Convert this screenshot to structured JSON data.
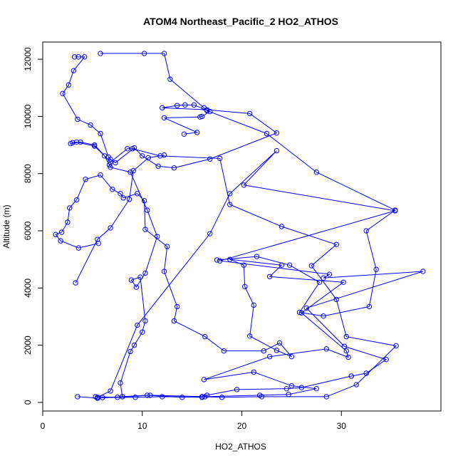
{
  "chart_data": {
    "type": "scatter",
    "title": "ATOM4 Northeast_Pacific_2 HO2_ATHOS",
    "xlabel": "HO2_ATHOS",
    "ylabel": "Altitude (m)",
    "xlim": [
      0,
      40
    ],
    "ylim": [
      -300,
      12600
    ],
    "xticks": [
      0,
      10,
      20,
      30
    ],
    "yticks": [
      0,
      2000,
      4000,
      6000,
      8000,
      10000,
      12000
    ],
    "grid": false,
    "color": "#0000ff",
    "marker": "open-circle",
    "connected": true,
    "series": [
      {
        "values": [
          [
            3.5,
            200
          ],
          [
            5.5,
            150
          ],
          [
            8,
            200
          ],
          [
            10.5,
            250
          ],
          [
            14,
            180
          ],
          [
            16,
            200
          ],
          [
            18,
            180
          ],
          [
            22,
            200
          ],
          [
            28.5,
            200
          ],
          [
            31.5,
            620
          ],
          [
            35.5,
            1980
          ],
          [
            30.5,
            2300
          ],
          [
            29.5,
            3600
          ],
          [
            27,
            4780
          ],
          [
            29.5,
            5520
          ],
          [
            24,
            6150
          ],
          [
            18.8,
            6920
          ],
          [
            17.8,
            8530
          ],
          [
            11.8,
            8620
          ],
          [
            9,
            8870
          ],
          [
            8.5,
            8870
          ],
          [
            6.8,
            8400
          ],
          [
            5.2,
            9000
          ],
          [
            3.8,
            9100
          ],
          [
            2.8,
            9050
          ],
          [
            3,
            9080
          ],
          [
            3.4,
            9100
          ],
          [
            5.2,
            8960
          ],
          [
            6.2,
            8620
          ],
          [
            6.7,
            8300
          ],
          [
            6.8,
            8220
          ],
          [
            8.8,
            8050
          ],
          [
            10.5,
            6720
          ],
          [
            11.5,
            5800
          ],
          [
            10.3,
            4520
          ],
          [
            9.4,
            4030
          ],
          [
            8.9,
            4280
          ],
          [
            9.8,
            4380
          ],
          [
            10.3,
            2850
          ],
          [
            10,
            2460
          ],
          [
            9.2,
            2000
          ],
          [
            8.8,
            1780
          ],
          [
            7.8,
            680
          ],
          [
            8,
            200
          ],
          [
            5.5,
            150
          ]
        ]
      },
      {
        "values": [
          [
            5.3,
            200
          ],
          [
            7.5,
            180
          ],
          [
            10.8,
            250
          ],
          [
            16.3,
            200
          ],
          [
            21.8,
            250
          ],
          [
            24.7,
            280
          ],
          [
            27.5,
            480
          ],
          [
            25,
            580
          ],
          [
            21.2,
            1060
          ],
          [
            16.2,
            800
          ],
          [
            22.8,
            1600
          ],
          [
            28.5,
            1870
          ],
          [
            30.7,
            1580
          ],
          [
            30.5,
            1800
          ],
          [
            26,
            3130
          ],
          [
            30.2,
            4200
          ],
          [
            22.8,
            4400
          ],
          [
            24,
            4800
          ],
          [
            18.8,
            5000
          ],
          [
            20.2,
            4800
          ],
          [
            20.3,
            4050
          ],
          [
            21.2,
            3400
          ],
          [
            20.8,
            2320
          ],
          [
            23.5,
            1820
          ],
          [
            25,
            1600
          ],
          [
            23.8,
            2080
          ],
          [
            22.2,
            1800
          ],
          [
            18.2,
            1800
          ],
          [
            16.3,
            2300
          ],
          [
            13.2,
            2850
          ],
          [
            13.5,
            3350
          ],
          [
            12.2,
            4580
          ],
          [
            12.5,
            5450
          ],
          [
            10.3,
            6050
          ],
          [
            10.2,
            7050
          ],
          [
            9.5,
            7300
          ],
          [
            8.1,
            7150
          ],
          [
            7.8,
            7300
          ],
          [
            7,
            7450
          ],
          [
            5.8,
            7950
          ],
          [
            4.3,
            7800
          ],
          [
            3.4,
            7080
          ],
          [
            2.7,
            6800
          ],
          [
            2.5,
            6300
          ],
          [
            1.9,
            5950
          ],
          [
            1.3,
            5870
          ],
          [
            1.8,
            5650
          ],
          [
            3.6,
            5400
          ],
          [
            5.6,
            5560
          ]
        ]
      },
      {
        "values": [
          [
            6,
            170
          ],
          [
            9.3,
            180
          ],
          [
            12,
            200
          ],
          [
            16,
            180
          ],
          [
            16.5,
            250
          ],
          [
            19.5,
            450
          ],
          [
            24.5,
            480
          ],
          [
            26,
            520
          ],
          [
            31,
            920
          ],
          [
            32.5,
            1020
          ],
          [
            34.5,
            1500
          ],
          [
            30.3,
            1960
          ],
          [
            26.5,
            3300
          ],
          [
            38.2,
            4580
          ],
          [
            28.2,
            4350
          ],
          [
            28.8,
            4480
          ],
          [
            17.8,
            4950
          ],
          [
            35.4,
            6700
          ],
          [
            20.2,
            7600
          ],
          [
            23.5,
            8800
          ],
          [
            18.8,
            7300
          ],
          [
            16.8,
            5900
          ],
          [
            9.5,
            2700
          ],
          [
            6.8,
            400
          ],
          [
            5.5,
            180
          ]
        ]
      },
      {
        "values": [
          [
            3.2,
            12080
          ],
          [
            3.6,
            12080
          ],
          [
            4.2,
            12080
          ],
          [
            3.1,
            11600
          ],
          [
            2.6,
            11100
          ],
          [
            2,
            10800
          ],
          [
            3.5,
            9900
          ],
          [
            4.8,
            9700
          ],
          [
            5.8,
            9400
          ],
          [
            6.6,
            8580
          ],
          [
            6.8,
            8500
          ],
          [
            7.3,
            8380
          ],
          [
            9.2,
            8900
          ],
          [
            10,
            8620
          ],
          [
            11.6,
            8260
          ],
          [
            13.2,
            8200
          ],
          [
            16.8,
            8510
          ],
          [
            23.5,
            9420
          ],
          [
            20.8,
            10100
          ],
          [
            16.5,
            10230
          ],
          [
            12,
            10300
          ],
          [
            13.5,
            10380
          ],
          [
            14.3,
            10400
          ],
          [
            15.2,
            10400
          ],
          [
            16.8,
            10170
          ],
          [
            16,
            10000
          ],
          [
            15.8,
            9980
          ],
          [
            12.2,
            9950
          ],
          [
            15.5,
            9440
          ],
          [
            14.2,
            9380
          ]
        ]
      },
      {
        "values": [
          [
            5.8,
            12200
          ],
          [
            10.2,
            12200
          ],
          [
            12.2,
            12200
          ],
          [
            12.8,
            11300
          ],
          [
            16.2,
            10300
          ],
          [
            16.5,
            10200
          ],
          [
            22.5,
            9400
          ],
          [
            27.5,
            8050
          ],
          [
            35.4,
            6720
          ],
          [
            32.5,
            6000
          ],
          [
            33.5,
            4650
          ],
          [
            32.8,
            3350
          ],
          [
            28.2,
            3020
          ],
          [
            25.8,
            3150
          ],
          [
            27.8,
            4200
          ],
          [
            24.8,
            4800
          ],
          [
            21.5,
            5100
          ],
          [
            17.5,
            4980
          ]
        ]
      },
      {
        "values": [
          [
            3.3,
            4180
          ],
          [
            5.5,
            5700
          ],
          [
            6.8,
            6100
          ],
          [
            8.7,
            7100
          ],
          [
            9.1,
            8100
          ],
          [
            10.6,
            8550
          ],
          [
            12.2,
            8650
          ]
        ]
      }
    ]
  }
}
